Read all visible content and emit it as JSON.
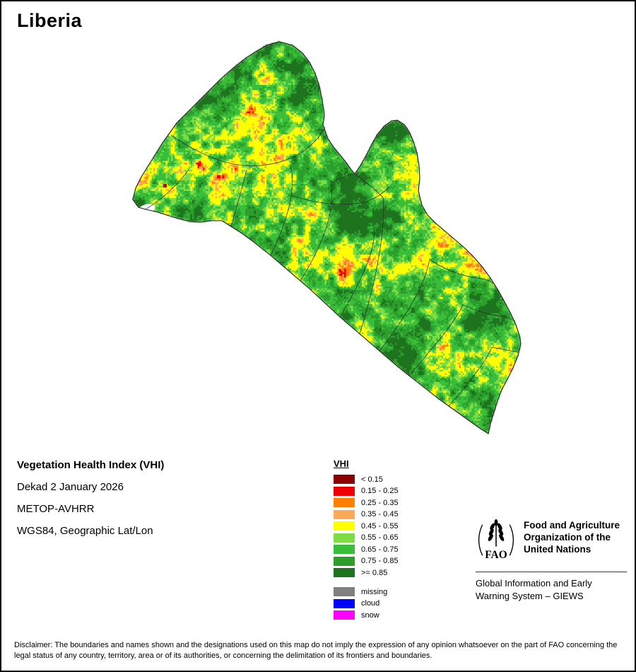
{
  "title": "Liberia",
  "map": {
    "region_name": "Liberia",
    "lake_color": "#ffffff",
    "anomaly_dot_color": "#cc0000",
    "boundary_color": "#2e2e2e"
  },
  "info": {
    "line1": "Vegetation Health Index (VHI)",
    "line2": "Dekad 2 January 2026",
    "line3": "METOP-AVHRR",
    "line4": "WGS84, Geographic Lat/Lon"
  },
  "legend": {
    "title": "VHI",
    "items": [
      {
        "label": "< 0.15",
        "color": "#8B0000"
      },
      {
        "label": "0.15 - 0.25",
        "color": "#EE0000"
      },
      {
        "label": "0.25 - 0.35",
        "color": "#FF8000"
      },
      {
        "label": "0.35 - 0.45",
        "color": "#FFA857"
      },
      {
        "label": "0.45 - 0.55",
        "color": "#FFFF00"
      },
      {
        "label": "0.55 - 0.65",
        "color": "#7EDC46"
      },
      {
        "label": "0.65 - 0.75",
        "color": "#39BE39"
      },
      {
        "label": "0.75 - 0.85",
        "color": "#2B9E2B"
      },
      {
        "label": ">= 0.85",
        "color": "#1E741E"
      }
    ],
    "extras": [
      {
        "label": "missing",
        "color": "#808080"
      },
      {
        "label": "cloud",
        "color": "#0000FF"
      },
      {
        "label": "snow",
        "color": "#FF00FF"
      }
    ]
  },
  "fao": {
    "logo_text": "FAO",
    "org_lines": [
      "Food and Agriculture",
      "Organization of the",
      "United Nations"
    ],
    "giews_lines": [
      "Global Information and Early",
      "Warning System – GIEWS"
    ]
  },
  "disclaimer": "Disclaimer: The boundaries and names shown and the designations used on this map do not imply the expression of any opinion whatsoever on the part of FAO concerning the legal status of any country, territory, area or of its authorities, or concerning the delimitation of its frontiers and boundaries."
}
